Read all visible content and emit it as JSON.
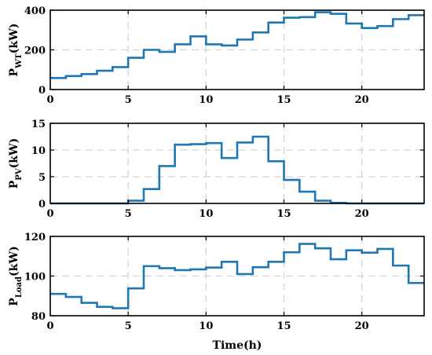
{
  "chart_data": [
    {
      "type": "line",
      "step": true,
      "ylabel": {
        "symbol": "P",
        "subscript": "WT",
        "unit": "(kW)"
      },
      "xlim": [
        0,
        24
      ],
      "ylim": [
        0,
        400
      ],
      "xticks": [
        "0",
        "5",
        "10",
        "15",
        "20"
      ],
      "yticks": [
        "0",
        "200",
        "400"
      ],
      "grid": true,
      "series": [
        {
          "color": "#1f77b4",
          "x": [
            0,
            1,
            2,
            3,
            4,
            5,
            6,
            7,
            8,
            9,
            10,
            11,
            12,
            13,
            14,
            15,
            16,
            17,
            18,
            19,
            20,
            21,
            22,
            23,
            24
          ],
          "values": [
            58,
            68,
            78,
            95,
            113,
            160,
            200,
            190,
            228,
            268,
            228,
            222,
            252,
            288,
            338,
            362,
            365,
            390,
            382,
            333,
            310,
            320,
            355,
            375,
            375
          ]
        }
      ]
    },
    {
      "type": "line",
      "step": true,
      "ylabel": {
        "symbol": "P",
        "subscript": "PV",
        "unit": "(kW)"
      },
      "xlim": [
        0,
        24
      ],
      "ylim": [
        0,
        15
      ],
      "xticks": [
        "0",
        "5",
        "10",
        "15",
        "20"
      ],
      "yticks": [
        "0",
        "5",
        "10",
        "15"
      ],
      "grid": true,
      "series": [
        {
          "color": "#1f77b4",
          "x": [
            0,
            1,
            2,
            3,
            4,
            5,
            6,
            7,
            8,
            9,
            10,
            11,
            12,
            13,
            14,
            15,
            16,
            17,
            18,
            19,
            20,
            21,
            22,
            23,
            24
          ],
          "values": [
            0,
            0,
            0,
            0,
            0,
            0.5,
            2.7,
            7.0,
            11.0,
            11.1,
            11.3,
            8.5,
            11.4,
            12.5,
            7.9,
            4.4,
            2.2,
            0.5,
            0.1,
            0,
            0,
            0,
            0,
            0,
            0
          ]
        }
      ]
    },
    {
      "type": "line",
      "step": true,
      "ylabel": {
        "symbol": "P",
        "subscript": "Load",
        "unit": "(kW)"
      },
      "xlabel": "Time(h)",
      "xlim": [
        0,
        24
      ],
      "ylim": [
        80,
        120
      ],
      "xticks": [
        "0",
        "5",
        "10",
        "15",
        "20"
      ],
      "yticks": [
        "80",
        "100",
        "120"
      ],
      "grid": true,
      "series": [
        {
          "color": "#1f77b4",
          "x": [
            0,
            1,
            2,
            3,
            4,
            5,
            6,
            7,
            8,
            9,
            10,
            11,
            12,
            13,
            14,
            15,
            16,
            17,
            18,
            19,
            20,
            21,
            22,
            23,
            24
          ],
          "values": [
            91,
            89.5,
            86.5,
            84.5,
            83.8,
            93.8,
            105,
            104,
            103,
            103.4,
            104.3,
            107.2,
            101,
            104.5,
            107.2,
            112,
            116.2,
            114,
            108.5,
            113,
            111.8,
            113.7,
            105.3,
            96.5,
            96.5
          ]
        }
      ]
    }
  ]
}
